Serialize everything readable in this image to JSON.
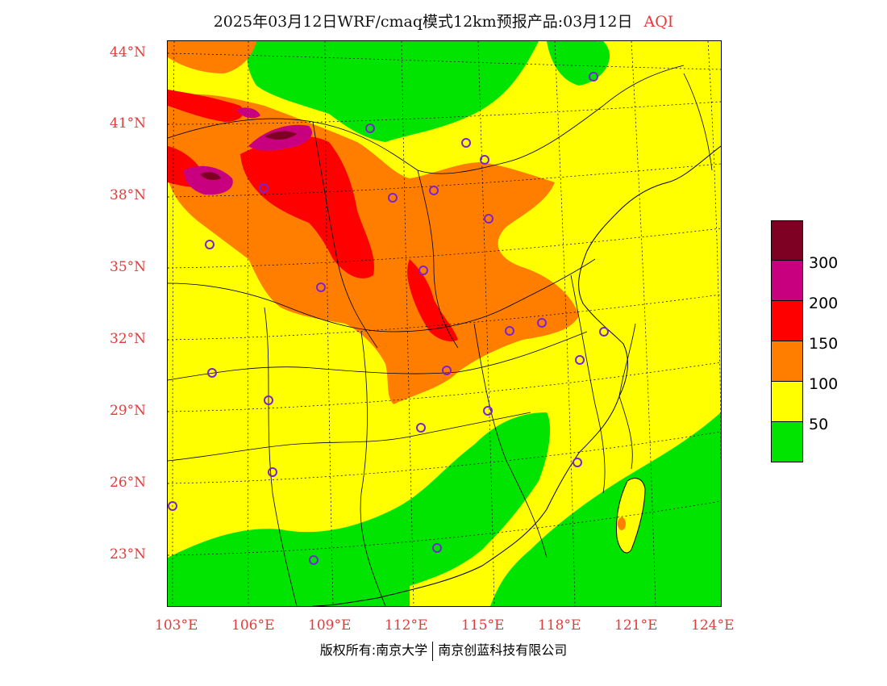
{
  "title": {
    "text": "2025年03月12日WRF/cmaq模式12km预报产品:03月12日",
    "variable": "AQI"
  },
  "map": {
    "latitude_labels": [
      "44°N",
      "41°N",
      "38°N",
      "35°N",
      "32°N",
      "29°N",
      "26°N",
      "23°N"
    ],
    "longitude_labels": [
      "103°E",
      "106°E",
      "109°E",
      "112°E",
      "115°E",
      "118°E",
      "121°E",
      "124°E"
    ],
    "colors": {
      "good": "#00e400",
      "moderate": "#ffff00",
      "sensitive": "#ff7e00",
      "unhealthy": "#ff0000",
      "very_unhealthy": "#c80080",
      "hazardous": "#7e0023",
      "station": "#7a22d6",
      "label": "#e23b3b"
    }
  },
  "legend": {
    "colors": [
      "#7e0023",
      "#c80080",
      "#ff0000",
      "#ff7e00",
      "#ffff00",
      "#00e400"
    ],
    "labels": [
      "300",
      "200",
      "150",
      "100",
      "50"
    ]
  },
  "copyright": {
    "left": "版权所有:南京大学",
    "right": "南京创蓝科技有限公司"
  }
}
